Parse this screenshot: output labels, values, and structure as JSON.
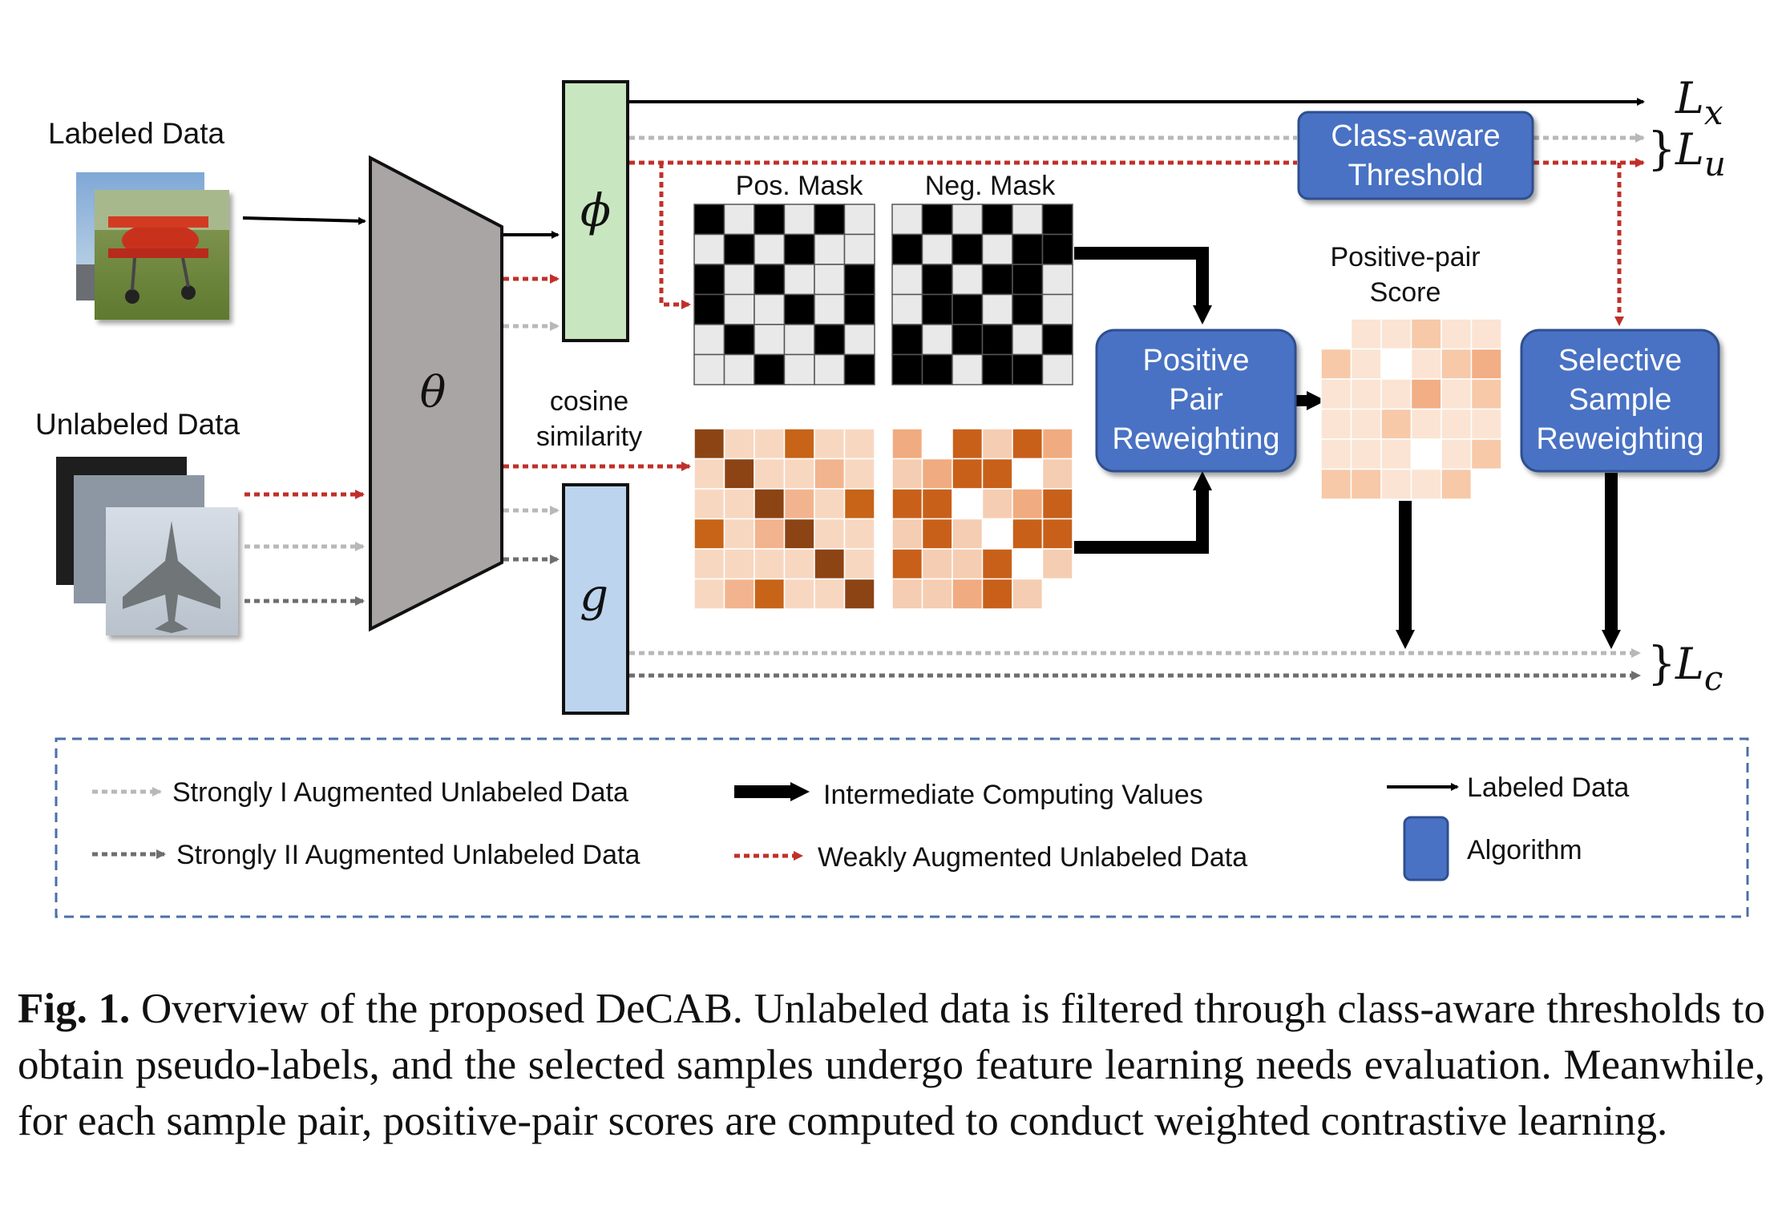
{
  "inputs": {
    "labeled_label": "Labeled Data",
    "unlabeled_label": "Unlabeled Data"
  },
  "encoder": {
    "symbol": "θ"
  },
  "heads": {
    "phi": "ϕ",
    "g": "g"
  },
  "masks": {
    "pos_label": "Pos. Mask",
    "neg_label": "Neg. Mask",
    "cosine_line1": "cosine",
    "cosine_line2": "similarity",
    "pos_pattern": [
      [
        1,
        0,
        1,
        0,
        1,
        0
      ],
      [
        0,
        1,
        0,
        1,
        0,
        0
      ],
      [
        1,
        0,
        1,
        0,
        0,
        1
      ],
      [
        1,
        0,
        0,
        1,
        0,
        1
      ],
      [
        0,
        1,
        0,
        0,
        1,
        0
      ],
      [
        0,
        0,
        1,
        0,
        0,
        1
      ]
    ]
  },
  "heatmaps": {
    "left_levels": [
      [
        4,
        1,
        1,
        3,
        1,
        1
      ],
      [
        1,
        4,
        1,
        1,
        2,
        1
      ],
      [
        1,
        1,
        4,
        2,
        1,
        3
      ],
      [
        3,
        1,
        2,
        4,
        1,
        1
      ],
      [
        1,
        1,
        1,
        1,
        4,
        1
      ],
      [
        1,
        2,
        3,
        1,
        1,
        4
      ]
    ],
    "right_levels": [
      [
        2,
        0,
        3,
        1,
        3,
        2
      ],
      [
        1,
        2,
        3,
        3,
        0,
        1
      ],
      [
        3,
        3,
        0,
        1,
        2,
        3
      ],
      [
        1,
        3,
        1,
        0,
        3,
        3
      ],
      [
        3,
        1,
        1,
        3,
        0,
        1
      ],
      [
        1,
        1,
        2,
        3,
        1,
        0
      ]
    ],
    "score_levels": [
      [
        -1,
        1,
        1,
        2,
        1,
        1
      ],
      [
        2,
        1,
        0,
        1,
        2,
        3
      ],
      [
        1,
        1,
        1,
        3,
        1,
        2
      ],
      [
        1,
        1,
        2,
        1,
        1,
        1
      ],
      [
        1,
        1,
        1,
        0,
        1,
        2
      ],
      [
        2,
        2,
        1,
        1,
        2,
        -1
      ]
    ],
    "colors": {
      "left": [
        "#f3e4d9",
        "#f8d7c1",
        "#f2b48e",
        "#c76417",
        "#8c4414"
      ],
      "right": [
        "#ffffff",
        "#f5cdb2",
        "#f1ab80",
        "#c8601a"
      ],
      "score": [
        "#ffffff",
        "#fbe4d3",
        "#f7c9a8",
        "#f2ae84"
      ]
    }
  },
  "boxes": {
    "threshold_line1": "Class-aware",
    "threshold_line2": "Threshold",
    "ppr_line1": "Positive",
    "ppr_line2": "Pair",
    "ppr_line3": "Reweighting",
    "ssr_line1": "Selective",
    "ssr_line2": "Sample",
    "ssr_line3": "Reweighting",
    "score_line1": "Positive-pair",
    "score_line2": "Score",
    "fill": "#4a72c4",
    "stroke": "#2f4f8f"
  },
  "losses": {
    "lx_base": "L",
    "lx_sub": "x",
    "lu_base": "L",
    "lu_sub": "u",
    "lc_base": "L",
    "lc_sub": "c",
    "brace": "}"
  },
  "legend": {
    "strong1": "Strongly I Augmented Unlabeled Data",
    "strong2": "Strongly II Augmented Unlabeled Data",
    "intermediate": "Intermediate Computing Values",
    "weak": "Weakly Augmented Unlabeled Data",
    "labeled": "Labeled Data",
    "algorithm": "Algorithm"
  },
  "colors": {
    "weak_red": "#c0302a",
    "strong1_gray": "#b8b8b8",
    "strong2_gray": "#6e6e6e",
    "encoder_fill": "#a9a5a4",
    "phi_fill": "#c8e6bf",
    "g_fill": "#bcd4ee"
  },
  "caption": {
    "label": "Fig. 1.",
    "text": "Overview of the proposed DeCAB. Unlabeled data is filtered through class-aware thresholds to obtain pseudo-labels, and the selected samples undergo feature learning needs evaluation. Meanwhile, for each sample pair, positive-pair scores are computed to conduct weighted contrastive learning."
  }
}
